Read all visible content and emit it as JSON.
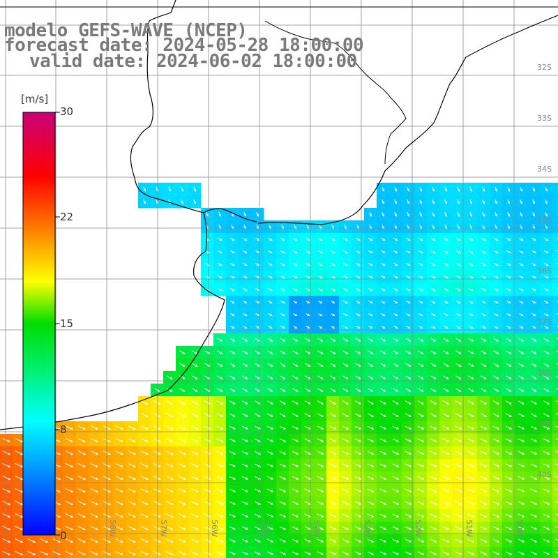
{
  "header": {
    "line1": "modelo GEFS-WAVE (NCEP)",
    "line2": "forecast date: 2024-05-28 18:00:00",
    "line3": "valid date: 2024-06-02 18:00:00"
  },
  "colorbar": {
    "unit": "[m/s]",
    "ticks": [
      "30",
      "22",
      "15",
      "8",
      "0"
    ],
    "range": [
      0,
      30
    ],
    "colors": [
      "#0000ff",
      "#00aaff",
      "#00ffff",
      "#00dd00",
      "#ffff00",
      "#ff8800",
      "#ff0000",
      "#cc0077"
    ]
  },
  "grid": {
    "lat_labels": [
      "32S",
      "33S",
      "34S",
      "35S",
      "36S",
      "37S",
      "38S",
      "39S",
      "40S"
    ],
    "lon_labels": [
      "58W",
      "57W",
      "56W",
      "55W",
      "54W",
      "53W",
      "52W",
      "51W",
      "50W"
    ]
  },
  "colors": {
    "grid_line": "#888888",
    "coast": "#000000",
    "land": "#ffffff",
    "arrow": "#ffffff",
    "label": "#888888"
  }
}
